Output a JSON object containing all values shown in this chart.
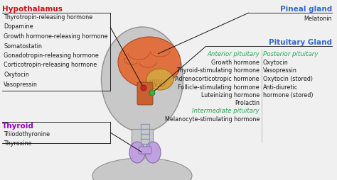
{
  "bg_color": "#f0f0f0",
  "hypothalamus_label": "Hypothalamus",
  "hypothalamus_color": "#cc1111",
  "hypothalamus_hormones": [
    "Thyrotropin-releasing hormone",
    "Dopamine",
    "Growth hormone-releasing hormone",
    "Somatostatin",
    "Gonadotropin-releasing hormone",
    "Corticotropin-releasing hormone",
    "Oxytocin",
    "Vasopressin"
  ],
  "thyroid_label": "Thyroid",
  "thyroid_color": "#9900cc",
  "thyroid_hormones": [
    "Triiodothyronine",
    "Thyroxine"
  ],
  "pineal_label": "Pineal gland",
  "pineal_color": "#3366cc",
  "pineal_hormones": [
    "Melatonin"
  ],
  "pituitary_label": "Pituitary Gland",
  "pituitary_color": "#3366cc",
  "anterior_label": "Anterior pituitary",
  "anterior_color": "#22aa55",
  "anterior_hormones": [
    "Growth hormone",
    "Thyroid-stimulating hormone",
    "Adrenocorticotropic hormone",
    "Follicle-stimulating hormone",
    "Luteinizing hormone",
    "Prolactin"
  ],
  "posterior_label": "Posterior pituitary",
  "posterior_color": "#22aa55",
  "posterior_hormones": [
    "Oxytocin",
    "Vasopressin",
    "Oxytocin (stored)",
    "Anti-diuretic",
    "hormone (stored)"
  ],
  "intermediate_label": "Intermediate pituitary",
  "intermediate_color": "#22aa55",
  "intermediate_hormones": [
    "Melanocyte-stimulating hormone"
  ],
  "text_color": "#1a1a1a",
  "line_color": "#111111",
  "head_color": "#c8c8c8",
  "head_edge": "#909090",
  "brain_color": "#e07040",
  "brain_edge": "#b04818",
  "cerebellum_color": "#d4a040",
  "brainstem_color": "#c86030",
  "hypo_dot_color": "#cc2222",
  "pituitary_dot_color": "#44aa44",
  "thyroid_gland_color": "#c0a0e0",
  "thyroid_gland_edge": "#8060a0",
  "font_size": 5.8,
  "label_font_size": 7.5
}
